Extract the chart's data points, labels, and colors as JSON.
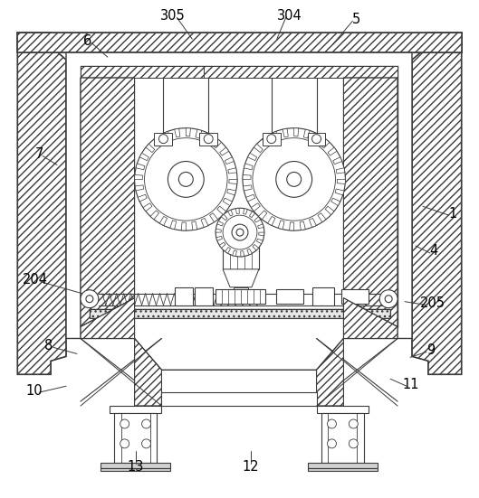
{
  "figsize": [
    5.29,
    5.51
  ],
  "dpi": 100,
  "bg_color": "#ffffff",
  "line_color": "#3a3a3a",
  "lw_main": 1.0,
  "lw_thin": 0.6
}
